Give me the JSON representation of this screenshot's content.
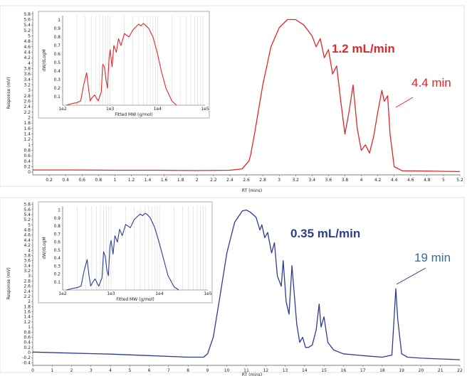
{
  "chart_data": [
    {
      "type": "line",
      "name": "top",
      "color": "#e3262a",
      "ylabel": "Response (mV)",
      "xlabel": "RT (mins)",
      "xlim": [
        0,
        5.2
      ],
      "ylim": [
        -0.1,
        5.9
      ],
      "xticks": [
        "0.2",
        "0.4",
        "0.6",
        "0.8",
        "1",
        "1.2",
        "1.4",
        "1.6",
        "1.8",
        "2",
        "2.2",
        "2.4",
        "2.6",
        "2.8",
        "3",
        "3.2",
        "3.4",
        "3.6",
        "3.8",
        "4",
        "4.2",
        "4.4",
        "4.6",
        "4.8",
        "5",
        "5.2"
      ],
      "yticks": [
        "0",
        "0.2",
        "0.4",
        "0.6",
        "0.8",
        "1",
        "1.2",
        "1.4",
        "1.6",
        "1.8",
        "2",
        "2.2",
        "2.4",
        "2.6",
        "2.8",
        "3",
        "3.2",
        "3.4",
        "3.6",
        "3.8",
        "4",
        "4.2",
        "4.4",
        "4.6",
        "4.8",
        "5",
        "5.2",
        "5.4",
        "5.6",
        "5.8"
      ],
      "flow_label": "1.2 mL/min",
      "time_label": "4.4 min",
      "time_label_x": 4.36,
      "x": [
        0,
        0.5,
        1.0,
        1.5,
        2.0,
        2.4,
        2.55,
        2.6,
        2.63,
        2.65,
        2.7,
        2.8,
        2.9,
        3.0,
        3.1,
        3.2,
        3.3,
        3.4,
        3.45,
        3.5,
        3.55,
        3.6,
        3.65,
        3.7,
        3.75,
        3.8,
        3.85,
        3.9,
        3.95,
        4.0,
        4.05,
        4.1,
        4.15,
        4.2,
        4.25,
        4.28,
        4.32,
        4.35,
        4.4,
        4.5,
        4.8,
        5.2
      ],
      "y": [
        0.08,
        0.08,
        0.07,
        0.07,
        0.06,
        0.07,
        0.12,
        0.3,
        0.4,
        0.6,
        1.4,
        3.2,
        4.6,
        5.3,
        5.6,
        5.6,
        5.4,
        5.0,
        4.6,
        4.9,
        4.2,
        4.5,
        3.6,
        3.9,
        2.6,
        1.4,
        2.2,
        3.2,
        1.6,
        0.8,
        1.0,
        0.7,
        1.3,
        2.2,
        3.0,
        2.6,
        2.8,
        1.4,
        0.2,
        0.05,
        0.04,
        0.02
      ],
      "inset": {
        "type": "line",
        "xlabel": "Fitted MW (g/mol)",
        "ylabel": "dW/dLogM",
        "xscale": "log",
        "xlim": [
          100,
          100000
        ],
        "ylim": [
          0,
          1.05
        ],
        "xticks": [
          "1e2",
          "1e3",
          "1e4",
          "1e5"
        ],
        "yticks": [
          "0.1",
          "0.2",
          "0.3",
          "0.4",
          "0.5",
          "0.6",
          "0.7",
          "0.8",
          "0.9",
          "1"
        ],
        "x": [
          120,
          160,
          200,
          240,
          280,
          320,
          350,
          380,
          420,
          470,
          520,
          560,
          600,
          650,
          700,
          760,
          820,
          880,
          950,
          1000,
          1100,
          1200,
          1350,
          1500,
          1700,
          2000,
          2500,
          3000,
          3500,
          4000,
          4500,
          5000,
          5500,
          6500,
          8000,
          10000,
          12000,
          15000,
          20000,
          25000
        ],
        "y": [
          0.0,
          0.02,
          0.03,
          0.05,
          0.25,
          0.38,
          0.2,
          0.05,
          0.09,
          0.12,
          0.08,
          0.05,
          0.1,
          0.15,
          0.48,
          0.45,
          0.3,
          0.2,
          0.55,
          0.65,
          0.45,
          0.7,
          0.62,
          0.78,
          0.7,
          0.84,
          0.8,
          0.88,
          0.92,
          0.95,
          0.93,
          0.96,
          0.94,
          0.9,
          0.8,
          0.6,
          0.4,
          0.2,
          0.05,
          0.0
        ]
      }
    },
    {
      "type": "line",
      "name": "bottom",
      "color": "#2e3d8f",
      "ylabel": "Response (mV)",
      "xlabel": "RT (mins)",
      "xlim": [
        0,
        22
      ],
      "ylim": [
        -0.5,
        5.9
      ],
      "xticks": [
        "0",
        "1",
        "2",
        "3",
        "4",
        "5",
        "6",
        "7",
        "8",
        "9",
        "10",
        "11",
        "12",
        "13",
        "14",
        "15",
        "16",
        "17",
        "18",
        "19",
        "20",
        "21",
        "22"
      ],
      "yticks": [
        "-0.4",
        "-0.2",
        "0",
        "0.2",
        "0.4",
        "0.6",
        "0.8",
        "1",
        "1.2",
        "1.4",
        "1.6",
        "1.8",
        "2",
        "2.2",
        "2.4",
        "2.6",
        "2.8",
        "3",
        "3.2",
        "3.4",
        "3.6",
        "3.8",
        "4",
        "4.2",
        "4.4",
        "4.6",
        "4.8",
        "5",
        "5.2",
        "5.4",
        "5.6",
        "5.8"
      ],
      "flow_label": "0.35 mL/min",
      "time_label": "19 min",
      "time_label_x": 18.7,
      "x": [
        0,
        2,
        4,
        6,
        8,
        8.8,
        9.0,
        9.3,
        9.6,
        10.0,
        10.4,
        10.8,
        11.0,
        11.2,
        11.5,
        11.7,
        11.8,
        11.95,
        12.1,
        12.3,
        12.45,
        12.6,
        12.8,
        12.9,
        13.05,
        13.2,
        13.35,
        13.5,
        13.6,
        13.75,
        13.9,
        14.05,
        14.2,
        14.4,
        14.6,
        14.75,
        14.85,
        15.0,
        15.2,
        15.5,
        16,
        17,
        18,
        18.5,
        18.6,
        18.7,
        18.8,
        19.0,
        19.3,
        20,
        21,
        22
      ],
      "y": [
        0.02,
        -0.02,
        -0.06,
        -0.12,
        -0.18,
        -0.18,
        -0.05,
        0.6,
        2.0,
        3.9,
        5.1,
        5.55,
        5.58,
        5.5,
        5.3,
        4.8,
        5.0,
        4.5,
        4.7,
        3.9,
        4.3,
        3.0,
        2.6,
        3.6,
        2.0,
        1.5,
        3.4,
        2.0,
        1.1,
        0.4,
        0.6,
        0.2,
        0.2,
        0.3,
        0.9,
        1.9,
        1.0,
        1.4,
        0.4,
        0.1,
        -0.05,
        -0.12,
        -0.18,
        -0.1,
        1.2,
        2.5,
        1.3,
        -0.05,
        -0.18,
        -0.22,
        -0.25,
        -0.28
      ],
      "inset": {
        "type": "line",
        "xlabel": "Fitted MW (g/mol)",
        "ylabel": "dW/dLogM",
        "xscale": "log",
        "xlim": [
          100,
          100000
        ],
        "ylim": [
          0,
          1.05
        ],
        "xticks": [
          "1e2",
          "1e3",
          "1e4",
          "1e5"
        ],
        "yticks": [
          "0.1",
          "0.2",
          "0.3",
          "0.4",
          "0.5",
          "0.6",
          "0.7",
          "0.8",
          "0.9",
          "1"
        ],
        "x": [
          120,
          160,
          200,
          240,
          280,
          320,
          350,
          380,
          420,
          470,
          520,
          560,
          600,
          650,
          700,
          760,
          820,
          880,
          950,
          1000,
          1100,
          1200,
          1350,
          1500,
          1700,
          2000,
          2500,
          3000,
          3500,
          4000,
          4500,
          5000,
          5500,
          6500,
          8000,
          10000,
          12000,
          15000,
          20000,
          25000
        ],
        "y": [
          0.0,
          0.02,
          0.03,
          0.05,
          0.25,
          0.38,
          0.18,
          0.05,
          0.1,
          0.14,
          0.08,
          0.05,
          0.1,
          0.15,
          0.48,
          0.42,
          0.25,
          0.18,
          0.55,
          0.62,
          0.45,
          0.68,
          0.6,
          0.76,
          0.68,
          0.82,
          0.78,
          0.88,
          0.92,
          0.95,
          0.93,
          0.96,
          0.95,
          0.9,
          0.78,
          0.58,
          0.4,
          0.18,
          0.04,
          0.0
        ]
      }
    }
  ]
}
